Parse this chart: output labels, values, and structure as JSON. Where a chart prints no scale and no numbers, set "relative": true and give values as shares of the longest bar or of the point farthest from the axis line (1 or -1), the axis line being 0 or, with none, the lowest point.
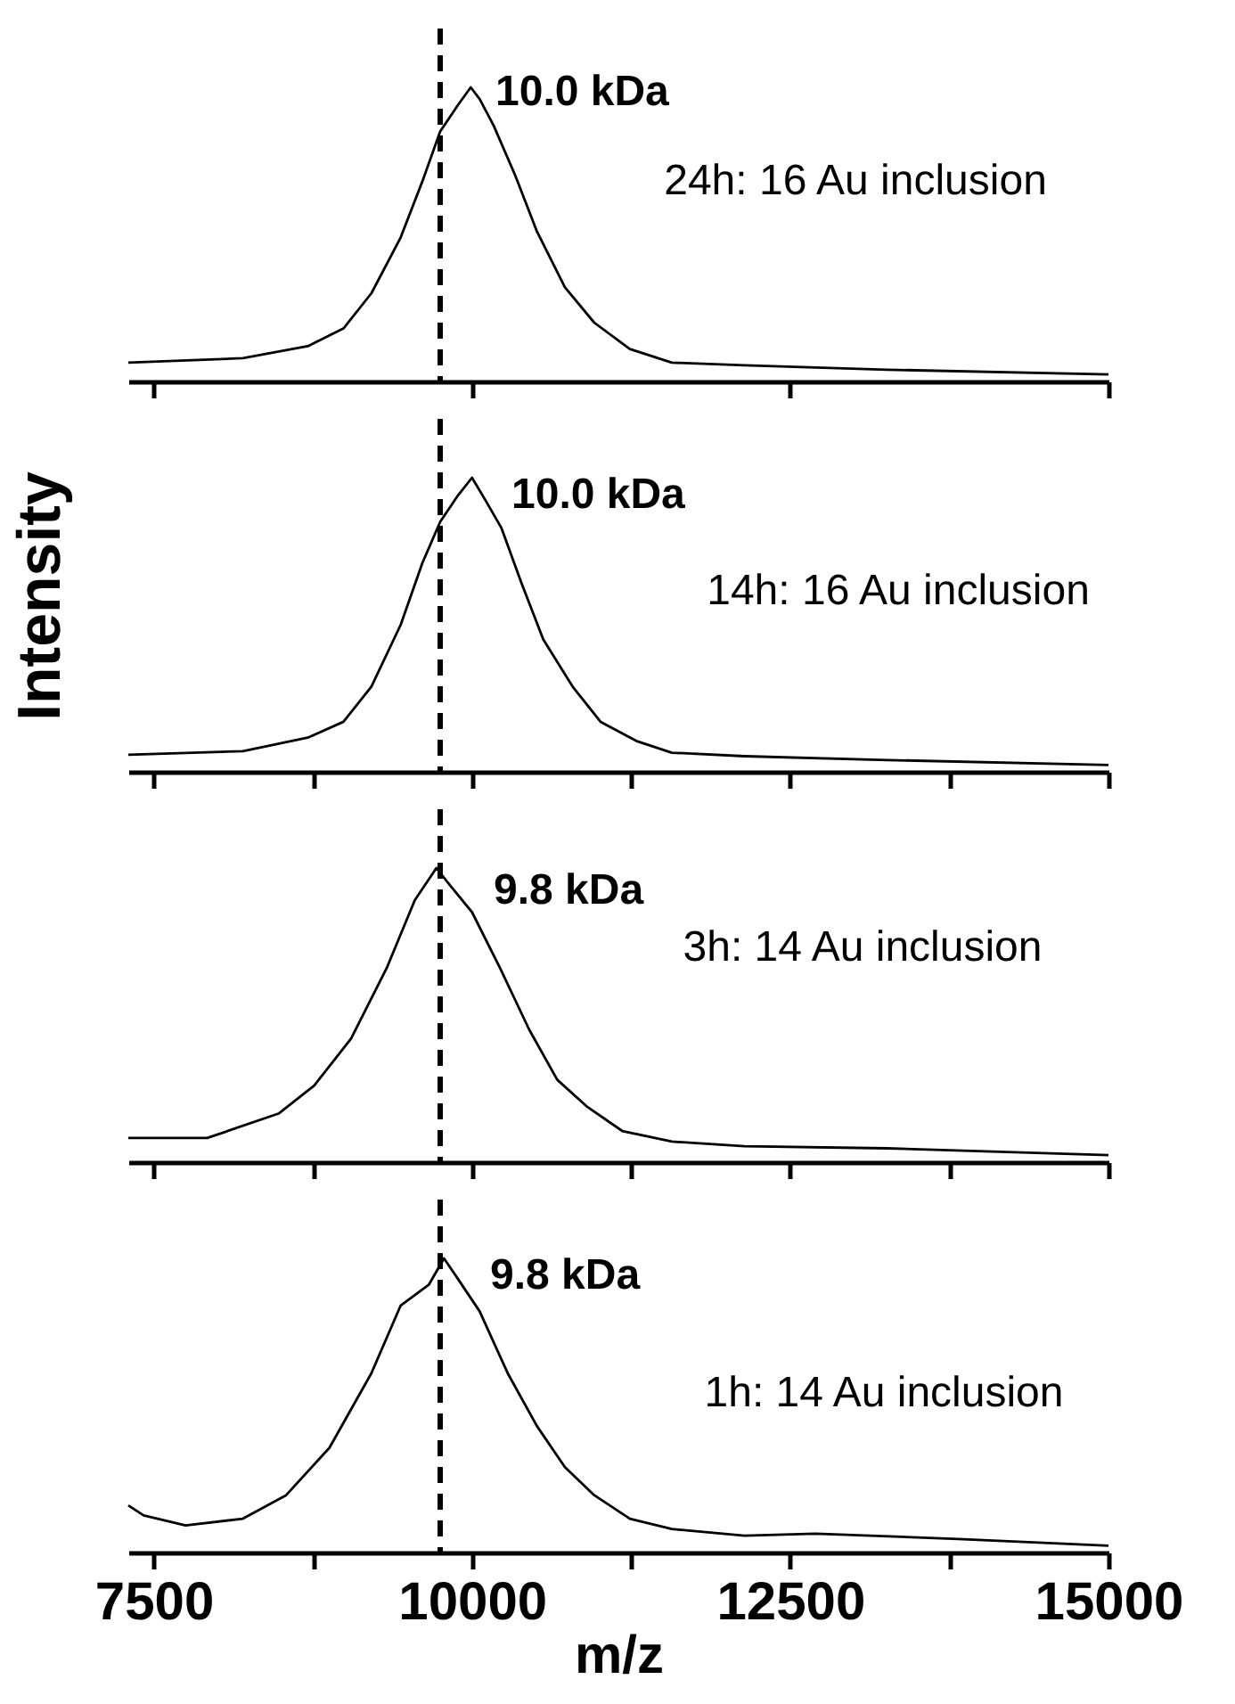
{
  "chart_data": [
    {
      "type": "line",
      "relative": true,
      "xlim": [
        7300,
        15000
      ],
      "xticks": [
        7500,
        10000,
        12500,
        15000
      ],
      "tick_labels": false,
      "ref_lines": [
        {
          "axis": "x",
          "value": 9750,
          "line_style": "dashed",
          "color": "#000000"
        }
      ],
      "annotations": [
        "10.0 kDa",
        "24h: 16 Au inclusion"
      ],
      "x": [
        7300,
        8200,
        8710,
        8990,
        9210,
        9440,
        9610,
        9750,
        9890,
        9990,
        10060,
        10170,
        10340,
        10510,
        10730,
        10960,
        11240,
        11570,
        12140,
        13260,
        15000
      ],
      "series": [
        {
          "color": "#000000",
          "values": [
            0.064,
            0.079,
            0.12,
            0.18,
            0.3,
            0.49,
            0.68,
            0.85,
            0.94,
            1,
            0.96,
            0.87,
            0.7,
            0.51,
            0.32,
            0.2,
            0.11,
            0.064,
            0.055,
            0.04,
            0.024
          ]
        }
      ]
    },
    {
      "type": "line",
      "relative": true,
      "ylabel": "Intensity",
      "xlim": [
        7300,
        15000
      ],
      "xticks": [
        7500,
        {
          "value": 8750,
          "label": null
        },
        10000,
        {
          "value": 11250,
          "label": null
        },
        12500,
        {
          "value": 13750,
          "label": null
        },
        15000
      ],
      "tick_labels": false,
      "ref_lines": [
        {
          "axis": "x",
          "value": 9750,
          "line_style": "dashed",
          "color": "#000000"
        }
      ],
      "annotations": [
        "10.0 kDa",
        "14h: 16 Au inclusion"
      ],
      "x": [
        7300,
        8200,
        8710,
        8990,
        9210,
        9440,
        9610,
        9750,
        9890,
        10000,
        10110,
        10230,
        10390,
        10560,
        10790,
        11010,
        11290,
        11570,
        12140,
        13260,
        15000
      ],
      "series": [
        {
          "color": "#000000",
          "values": [
            0.058,
            0.07,
            0.116,
            0.17,
            0.29,
            0.5,
            0.71,
            0.85,
            0.94,
            1,
            0.92,
            0.83,
            0.64,
            0.45,
            0.29,
            0.17,
            0.105,
            0.065,
            0.053,
            0.04,
            0.023
          ]
        }
      ]
    },
    {
      "type": "line",
      "relative": true,
      "xlim": [
        7300,
        15000
      ],
      "xticks": [
        7500,
        {
          "value": 8750,
          "label": null
        },
        10000,
        {
          "value": 11250,
          "label": null
        },
        12500,
        {
          "value": 13750,
          "label": null
        },
        15000
      ],
      "tick_labels": false,
      "ref_lines": [
        {
          "axis": "x",
          "value": 9750,
          "line_style": "dashed",
          "color": "#000000"
        }
      ],
      "annotations": [
        "9.8 kDa",
        "3h: 14 Au inclusion"
      ],
      "x": [
        7300,
        7920,
        8480,
        8760,
        9050,
        9330,
        9550,
        9720,
        9830,
        10000,
        10220,
        10450,
        10670,
        10900,
        11180,
        11570,
        12140,
        13260,
        15000
      ],
      "series": [
        {
          "color": "#000000",
          "values": [
            0.082,
            0.082,
            0.165,
            0.26,
            0.42,
            0.66,
            0.89,
            1,
            0.94,
            0.85,
            0.66,
            0.45,
            0.28,
            0.19,
            0.106,
            0.07,
            0.054,
            0.047,
            0.024
          ]
        }
      ]
    },
    {
      "type": "line",
      "relative": true,
      "xlabel": "m/z",
      "xlim": [
        7300,
        15000
      ],
      "xticks": [
        7500,
        {
          "value": 8750,
          "label": null
        },
        10000,
        {
          "value": 11250,
          "label": null
        },
        12500,
        {
          "value": 13750,
          "label": null
        },
        15000
      ],
      "ref_lines": [
        {
          "axis": "x",
          "value": 9750,
          "line_style": "dashed",
          "color": "#000000"
        }
      ],
      "annotations": [
        "9.8  kDa",
        "1h: 14 Au inclusion"
      ],
      "x": [
        7300,
        7420,
        7750,
        8200,
        8540,
        8880,
        9210,
        9440,
        9660,
        9780,
        9890,
        10060,
        10280,
        10510,
        10730,
        10960,
        11240,
        11570,
        12140,
        12700,
        13820,
        15000
      ],
      "series": [
        {
          "color": "#000000",
          "values": [
            0.16,
            0.126,
            0.092,
            0.115,
            0.195,
            0.356,
            0.61,
            0.84,
            0.91,
            1,
            0.93,
            0.82,
            0.61,
            0.43,
            0.29,
            0.195,
            0.115,
            0.08,
            0.057,
            0.064,
            0.046,
            0.023
          ]
        }
      ]
    }
  ]
}
